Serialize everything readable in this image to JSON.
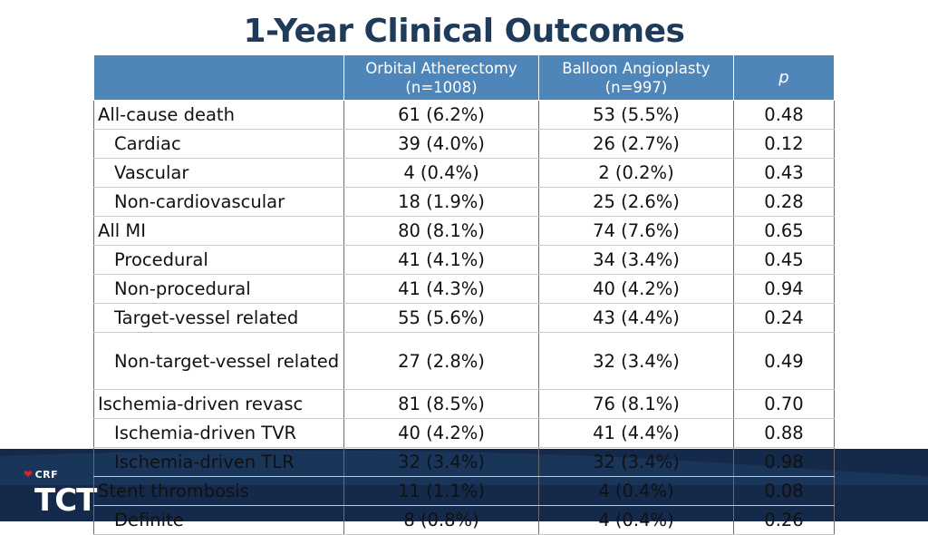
{
  "title": "1-Year Clinical Outcomes",
  "logo": {
    "crf": "CRF",
    "tct": "TCT"
  },
  "colors": {
    "header_bg": "#4e86b9",
    "title": "#1f3b5a",
    "band": "#152a4a"
  },
  "table": {
    "headers": [
      "",
      [
        "Orbital Atherectomy",
        "(n=1008)"
      ],
      [
        "Balloon Angioplasty",
        "(n=997)"
      ],
      "p"
    ],
    "rows": [
      {
        "label": "All-cause death",
        "indent": false,
        "oa": "61 (6.2%)",
        "ba": "53 (5.5%)",
        "p": "0.48"
      },
      {
        "label": "Cardiac",
        "indent": true,
        "oa": "39 (4.0%)",
        "ba": "26 (2.7%)",
        "p": "0.12"
      },
      {
        "label": "Vascular",
        "indent": true,
        "oa": "4 (0.4%)",
        "ba": "2 (0.2%)",
        "p": "0.43"
      },
      {
        "label": "Non-cardiovascular",
        "indent": true,
        "oa": "18 (1.9%)",
        "ba": "25 (2.6%)",
        "p": "0.28"
      },
      {
        "label": "All MI",
        "indent": false,
        "oa": "80 (8.1%)",
        "ba": "74 (7.6%)",
        "p": "0.65"
      },
      {
        "label": "Procedural",
        "indent": true,
        "oa": "41 (4.1%)",
        "ba": "34 (3.4%)",
        "p": "0.45"
      },
      {
        "label": "Non-procedural",
        "indent": true,
        "oa": "41 (4.3%)",
        "ba": "40 (4.2%)",
        "p": "0.94"
      },
      {
        "label": "Target-vessel related",
        "indent": true,
        "oa": "55 (5.6%)",
        "ba": "43 (4.4%)",
        "p": "0.24"
      },
      {
        "label": "Non-target-vessel related",
        "indent": true,
        "tall": true,
        "oa": "27 (2.8%)",
        "ba": "32 (3.4%)",
        "p": "0.49"
      },
      {
        "label": "Ischemia-driven revasc",
        "indent": false,
        "oa": "81 (8.5%)",
        "ba": "76 (8.1%)",
        "p": "0.70"
      },
      {
        "label": "Ischemia-driven TVR",
        "indent": true,
        "oa": "40 (4.2%)",
        "ba": "41 (4.4%)",
        "p": "0.88"
      },
      {
        "label": "Ischemia-driven TLR",
        "indent": true,
        "oa": "32 (3.4%)",
        "ba": "32 (3.4%)",
        "p": "0.98"
      },
      {
        "label": "Stent thrombosis",
        "indent": false,
        "oa": "11 (1.1%)",
        "ba": "4 (0.4%)",
        "p": "0.08"
      },
      {
        "label": "Definite",
        "indent": true,
        "oa": "8 (0.8%)",
        "ba": "4 (0.4%)",
        "p": "0.26"
      }
    ]
  }
}
